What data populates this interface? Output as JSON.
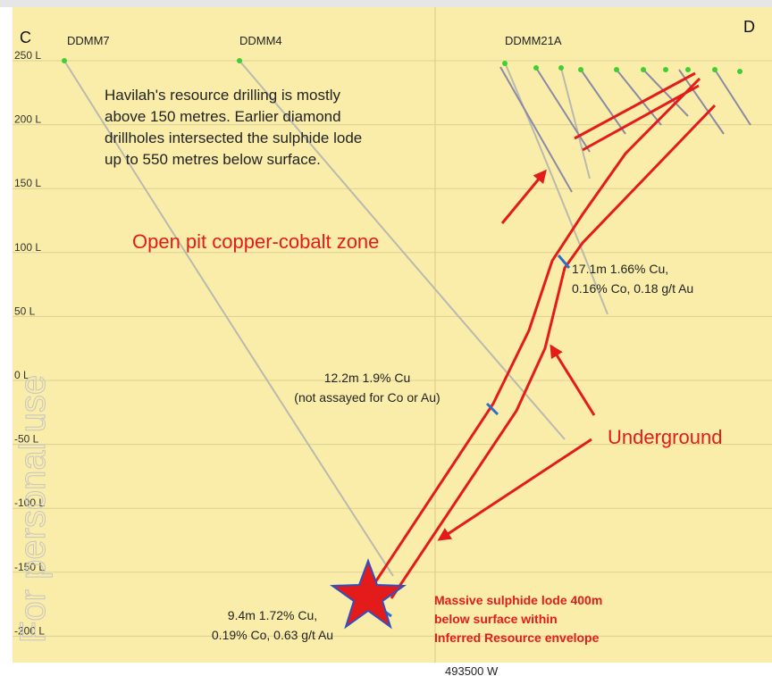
{
  "corners": {
    "left": "C",
    "right": "D"
  },
  "holes": [
    "DDMM7",
    "DDMM4",
    "DDMM21A"
  ],
  "levels": [
    "250 L",
    "200 L",
    "150 L",
    "100 L",
    "50 L",
    "0 L",
    "-50 L",
    "-100 L",
    "-150 L",
    "-200 L"
  ],
  "summary": [
    "Havilah's resource drilling is mostly",
    "above 150 metres. Earlier diamond",
    "drillholes intersected the sulphide lode",
    "up to 550 metres below surface."
  ],
  "open_pit_label": "Open pit  copper-cobalt zone",
  "underground_label": "Underground",
  "intercepts": [
    [
      "17.1m 1.66% Cu,",
      "0.16% Co, 0.18 g/t Au"
    ],
    [
      "12.2m 1.9% Cu",
      "(not assayed for Co or Au)"
    ],
    [
      "9.4m 1.72% Cu,",
      "0.19% Co, 0.63 g/t Au"
    ]
  ],
  "lode_label": [
    "Massive sulphide lode 400m",
    "below surface within",
    "Inferred Resource envelope"
  ],
  "easting": "493500 W",
  "watermark": "For personal use"
}
